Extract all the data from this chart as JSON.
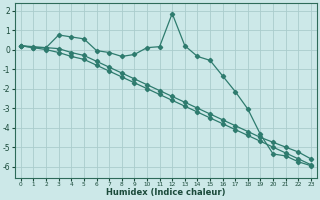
{
  "xlabel": "Humidex (Indice chaleur)",
  "bg_color": "#cce8e8",
  "grid_color": "#aacccc",
  "line_color": "#2e7b6e",
  "xlim": [
    -0.5,
    23.5
  ],
  "ylim": [
    -6.6,
    2.4
  ],
  "xticks": [
    0,
    1,
    2,
    3,
    4,
    5,
    6,
    7,
    8,
    9,
    10,
    11,
    12,
    13,
    14,
    15,
    16,
    17,
    18,
    19,
    20,
    21,
    22,
    23
  ],
  "yticks": [
    -6,
    -5,
    -4,
    -3,
    -2,
    -1,
    0,
    1,
    2
  ],
  "line1_x": [
    0,
    1,
    2,
    3,
    4,
    5,
    6,
    7,
    8,
    9,
    10,
    11,
    12,
    13,
    14,
    15,
    16,
    17,
    18,
    19,
    20,
    21,
    22,
    23
  ],
  "line1_y": [
    0.2,
    0.1,
    0.1,
    0.75,
    0.65,
    0.55,
    -0.05,
    -0.15,
    -0.35,
    -0.25,
    0.1,
    0.15,
    1.85,
    0.2,
    -0.35,
    -0.55,
    -1.35,
    -2.15,
    -3.05,
    -4.35,
    -5.35,
    -5.45,
    -5.75,
    -5.95
  ],
  "line2_x": [
    0,
    1,
    2,
    3,
    4,
    5,
    6,
    7,
    8,
    9,
    10,
    11,
    12,
    13,
    14,
    15,
    16,
    17,
    18,
    19,
    20,
    21,
    22,
    23
  ],
  "line2_y": [
    0.2,
    0.15,
    0.1,
    0.05,
    -0.15,
    -0.3,
    -0.6,
    -0.9,
    -1.2,
    -1.5,
    -1.8,
    -2.1,
    -2.4,
    -2.7,
    -3.0,
    -3.3,
    -3.6,
    -3.9,
    -4.2,
    -4.5,
    -4.75,
    -5.0,
    -5.25,
    -5.6
  ],
  "line3_x": [
    0,
    1,
    2,
    3,
    4,
    5,
    6,
    7,
    8,
    9,
    10,
    11,
    12,
    13,
    14,
    15,
    16,
    17,
    18,
    19,
    20,
    21,
    22,
    23
  ],
  "line3_y": [
    0.2,
    0.1,
    0.0,
    -0.15,
    -0.35,
    -0.5,
    -0.8,
    -1.1,
    -1.4,
    -1.7,
    -2.0,
    -2.3,
    -2.6,
    -2.9,
    -3.2,
    -3.5,
    -3.8,
    -4.1,
    -4.4,
    -4.7,
    -5.0,
    -5.3,
    -5.6,
    -5.9
  ]
}
